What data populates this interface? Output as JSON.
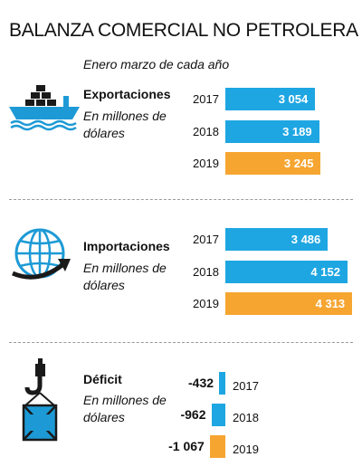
{
  "header": {
    "title": "BALANZA COMERCIAL NO PETROLERA",
    "subtitle": "Enero marzo de cada año"
  },
  "colors": {
    "blue": "#1ea6e2",
    "orange": "#f6a531",
    "icon_blue": "#1d9ad6",
    "dark": "#1a1a1a"
  },
  "icons": {
    "exports": "cargo-ship-icon",
    "imports": "globe-arrow-icon",
    "deficit": "crane-hook-crate-icon"
  },
  "chart_data": [
    {
      "type": "bar",
      "title": "Exportaciones",
      "unit": "En millones de dólares",
      "categories": [
        "2017",
        "2018",
        "2019"
      ],
      "values": [
        3054,
        3189,
        3245
      ],
      "labels": [
        "3 054",
        "3 189",
        "3 245"
      ],
      "highlight": "2019"
    },
    {
      "type": "bar",
      "title": "Importaciones",
      "unit": "En millones de dólares",
      "categories": [
        "2017",
        "2018",
        "2019"
      ],
      "values": [
        3486,
        4152,
        4313
      ],
      "labels": [
        "3 486",
        "4 152",
        "4 313"
      ],
      "highlight": "2019"
    },
    {
      "type": "bar",
      "title": "Déficit",
      "unit": "En millones de dólares",
      "categories": [
        "2017",
        "2018",
        "2019"
      ],
      "values": [
        -432,
        -962,
        -1067
      ],
      "labels": [
        "-432",
        "-962",
        "-1 067"
      ],
      "highlight": "2019"
    }
  ]
}
